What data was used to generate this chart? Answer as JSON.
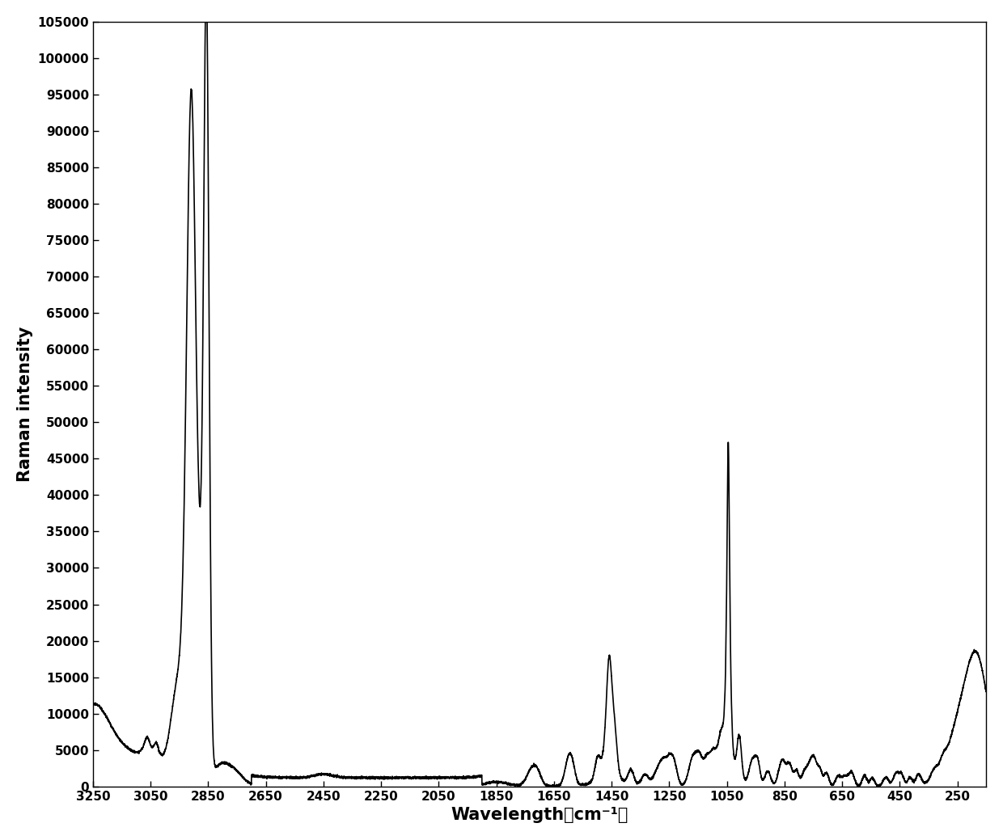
{
  "title": "",
  "xlabel": "Wavelength（cm⁻¹）",
  "ylabel": "Raman intensity",
  "xlim": [
    3250,
    150
  ],
  "ylim": [
    0,
    105000
  ],
  "yticks": [
    0,
    5000,
    10000,
    15000,
    20000,
    25000,
    30000,
    35000,
    40000,
    45000,
    50000,
    55000,
    60000,
    65000,
    70000,
    75000,
    80000,
    85000,
    90000,
    95000,
    100000,
    105000
  ],
  "xticks": [
    3250,
    3050,
    2850,
    2650,
    2450,
    2250,
    2050,
    1850,
    1650,
    1450,
    1250,
    1050,
    850,
    650,
    450,
    250
  ],
  "line_color": "#000000",
  "background_color": "#ffffff",
  "line_width": 1.2
}
